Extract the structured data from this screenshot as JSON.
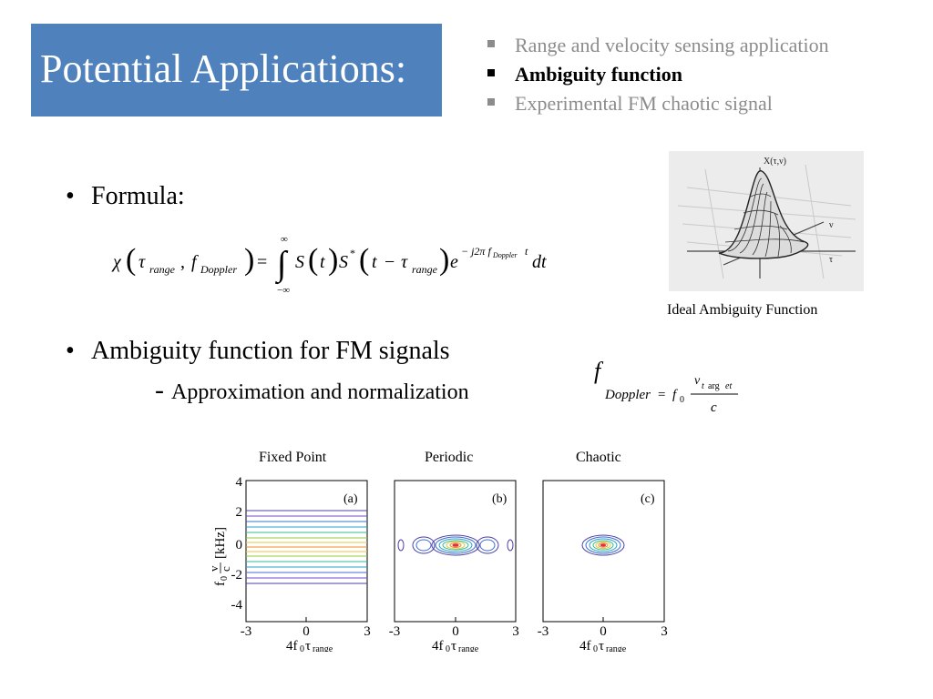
{
  "title": "Potential Applications:",
  "agenda": [
    {
      "label": "Range and velocity sensing application",
      "state": "inactive"
    },
    {
      "label": "Ambiguity function",
      "state": "active"
    },
    {
      "label": "Experimental FM chaotic signal",
      "state": "inactive"
    }
  ],
  "bullets": {
    "formula_label": "Formula:",
    "ambiguity_label": "Ambiguity function for FM signals",
    "approx_label": "Approximation and normalization"
  },
  "ideal_caption": "Ideal Ambiguity Function",
  "plots": {
    "titles": [
      "Fixed Point",
      "Periodic",
      "Chaotic"
    ],
    "panel_tags": [
      "(a)",
      "(b)",
      "(c)"
    ],
    "x_ticks": [
      "-3",
      "0",
      "3"
    ],
    "y_ticks": [
      "4",
      "2",
      "0",
      "-2",
      "-4"
    ]
  },
  "colors": {
    "title_bg": "#4f81bd",
    "inactive_text": "#8c8c8c"
  }
}
